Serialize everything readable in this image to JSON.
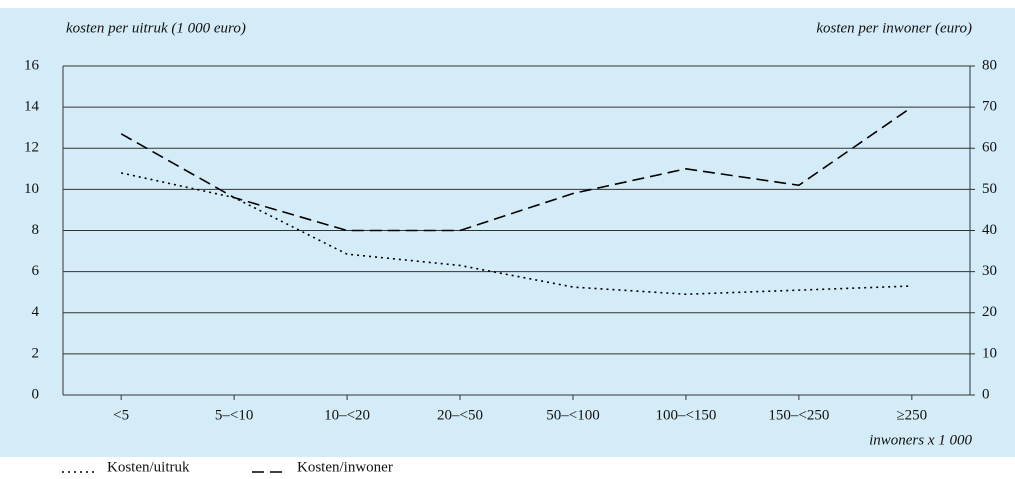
{
  "chart_data": {
    "type": "line",
    "y_label": "kosten per uitruk (1 000 euro)",
    "y2_label": "kosten per inwoner (euro)",
    "x_label": "inwoners x 1 000",
    "categories": [
      "<5",
      "5–<10",
      "10–<20",
      "20–<50",
      "50–<100",
      "100–<150",
      "150–<250",
      "≥250"
    ],
    "series": [
      {
        "name": "Kosten/uitruk",
        "color": "#000000",
        "line_style": "dotted",
        "values": [
          10.8,
          9.6,
          6.85,
          6.3,
          5.25,
          4.9,
          5.1,
          5.3
        ]
      },
      {
        "name": "Kosten/inwoner",
        "color": "#000000",
        "line_style": "dashed",
        "axis": "y2",
        "values": [
          63.5,
          48,
          40,
          40,
          49,
          55,
          51,
          70
        ]
      }
    ],
    "ylim": [
      0,
      16
    ],
    "yticks": [
      0,
      2,
      4,
      6,
      8,
      10,
      12,
      14,
      16
    ],
    "y2lim": [
      0,
      80
    ],
    "y2ticks": [
      0,
      10,
      20,
      30,
      40,
      50,
      60,
      70,
      80
    ],
    "grid": true,
    "background": "#d4ecf7",
    "legend": "bottom-left"
  }
}
